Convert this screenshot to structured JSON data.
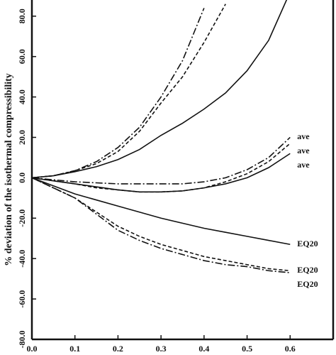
{
  "chart_data": {
    "type": "line",
    "y_label": "% deviation of the isothermal compressibility",
    "x": [
      0,
      0.05,
      0.1,
      0.15,
      0.2,
      0.25,
      0.3,
      0.35,
      0.4,
      0.45,
      0.5,
      0.55,
      0.6
    ],
    "xlim": [
      0,
      0.7
    ],
    "xticks": [
      {
        "value": 0,
        "label": "0.0"
      },
      0.1,
      0.2,
      0.3,
      0.4,
      0.5,
      0.6
    ],
    "ylim": [
      -80,
      88
    ],
    "yticks": [
      {
        "value": -80,
        "label": "-80.0"
      },
      {
        "value": -60,
        "label": "-60.0"
      },
      {
        "value": -40,
        "label": "-40.0"
      },
      {
        "value": -20,
        "label": "-20.0"
      },
      {
        "value": 0,
        "label": "0.0"
      },
      {
        "value": 20,
        "label": "20.0"
      },
      {
        "value": 40,
        "label": "40.0"
      },
      {
        "value": 60,
        "label": "60.0"
      },
      {
        "value": 80,
        "label": "80.0"
      }
    ],
    "grid": false,
    "series": [
      {
        "color": "#111111",
        "dash": "dashdot",
        "values": [
          0,
          1,
          3.5,
          8,
          15,
          25,
          40,
          58,
          84,
          null,
          null,
          null,
          null
        ]
      },
      {
        "color": "#111111",
        "dash": "dashed",
        "values": [
          0,
          1,
          3.5,
          7,
          13,
          23,
          37,
          50,
          67,
          86,
          null,
          null,
          null
        ]
      },
      {
        "color": "#111111",
        "dash": "solid",
        "values": [
          0,
          1,
          3,
          5.5,
          9,
          14,
          21,
          27,
          34,
          42,
          53,
          68,
          92
        ]
      },
      {
        "color": "#111111",
        "dash": "dashdot",
        "label": "ave",
        "values": [
          0,
          -1,
          -2,
          -2.5,
          -3,
          -3,
          -3,
          -3,
          -2,
          0,
          4,
          10,
          20
        ]
      },
      {
        "color": "#111111",
        "dash": "dashed",
        "label": "ave",
        "values": [
          0,
          -1.5,
          -3,
          -5,
          -6,
          -7,
          -7,
          -6.5,
          -5,
          -2,
          2,
          8,
          17
        ]
      },
      {
        "color": "#111111",
        "dash": "solid",
        "label": "ave",
        "values": [
          0,
          -1.5,
          -3,
          -4.5,
          -6,
          -7,
          -7,
          -6.5,
          -5,
          -3,
          0,
          5,
          12
        ]
      },
      {
        "color": "#111111",
        "dash": "solid",
        "label": "EQ20",
        "values": [
          0,
          -4,
          -8,
          -11,
          -14,
          -17,
          -20,
          -22.5,
          -25,
          -27,
          -29,
          -31,
          -33
        ]
      },
      {
        "color": "#111111",
        "dash": "dashed",
        "label": "EQ20",
        "values": [
          0,
          -5,
          -10,
          -17,
          -24,
          -29,
          -33,
          -36,
          -39,
          -41,
          -43,
          -45,
          -46
        ]
      },
      {
        "color": "#111111",
        "dash": "dashdot",
        "label": "EQ20",
        "values": [
          0,
          -5,
          -10,
          -18,
          -26,
          -31,
          -35,
          -38,
          -41,
          -43,
          -44,
          -46,
          -47
        ]
      }
    ]
  }
}
